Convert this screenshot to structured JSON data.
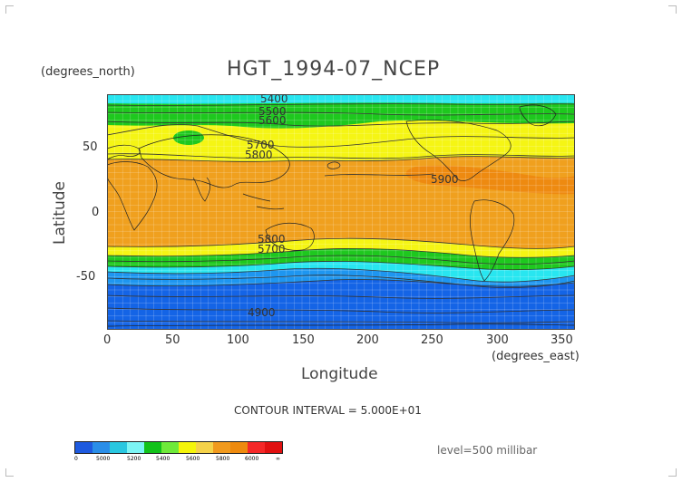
{
  "map": {
    "title": "HGT_1994-07_NCEP",
    "lat_unit": "(degrees_north)",
    "lon_unit": "(degrees_east)",
    "ylabel": "Latitude",
    "xlabel": "Longitude",
    "contour_interval": "CONTOUR INTERVAL = 5.000E+01",
    "level": "level=500 millibar",
    "x_ticks": [
      "0",
      "50",
      "100",
      "150",
      "200",
      "250",
      "300",
      "350"
    ],
    "y_ticks": [
      "50",
      "0",
      "-50"
    ],
    "contour_labels": [
      "5400",
      "5500",
      "5600",
      "5700",
      "5800",
      "5900",
      "5800",
      "5700",
      "4900"
    ]
  },
  "colorbar": {
    "colors": [
      "#1e5adf",
      "#2a8ee8",
      "#29c7e0",
      "#7cf5f5",
      "#12c21a",
      "#6fea3a",
      "#f5f50a",
      "#f5d24a",
      "#f19a1e",
      "#ee8a0e",
      "#f52828",
      "#e11111"
    ],
    "labels": [
      "0",
      "5000",
      "5200",
      "5400",
      "5600",
      "5800",
      "6000",
      "∞"
    ]
  },
  "bands": {
    "c_dblue": "#1464e6",
    "c_lblue": "#1e96f0",
    "c_cyan": "#28e6f0",
    "c_green": "#1ec81e",
    "c_yellow": "#f5f514",
    "c_orange": "#f0a01e",
    "c_deeporange": "#ee8a10"
  }
}
